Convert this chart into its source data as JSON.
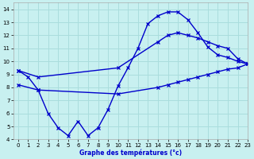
{
  "title": "Graphe des températures (°c)",
  "bg_color": "#c8f0f0",
  "grid_color": "#aadddd",
  "line_color": "#0000cc",
  "xlim": [
    -0.5,
    23
  ],
  "ylim": [
    4,
    14.5
  ],
  "xticks": [
    0,
    1,
    2,
    3,
    4,
    5,
    6,
    7,
    8,
    9,
    10,
    11,
    12,
    13,
    14,
    15,
    16,
    17,
    18,
    19,
    20,
    21,
    22,
    23
  ],
  "yticks": [
    4,
    5,
    6,
    7,
    8,
    9,
    10,
    11,
    12,
    13,
    14
  ],
  "series1_x": [
    0,
    1,
    2,
    3,
    4,
    5,
    6,
    7,
    8,
    9,
    10,
    11,
    12,
    13,
    14,
    15,
    16,
    17,
    18,
    19,
    20,
    21,
    22,
    23
  ],
  "series1_y": [
    9.3,
    8.8,
    7.8,
    6.0,
    4.9,
    4.3,
    5.4,
    4.3,
    4.9,
    6.3,
    8.1,
    9.5,
    11.0,
    12.9,
    13.5,
    13.8,
    13.8,
    13.2,
    12.2,
    11.1,
    10.5,
    10.3,
    10.0,
    9.8
  ],
  "series2_x": [
    0,
    2,
    10,
    14,
    15,
    16,
    17,
    18,
    19,
    20,
    21,
    22,
    23
  ],
  "series2_y": [
    9.3,
    8.8,
    9.5,
    11.5,
    12.0,
    12.2,
    12.0,
    11.8,
    11.5,
    11.2,
    11.0,
    10.2,
    9.8
  ],
  "series3_x": [
    0,
    2,
    10,
    14,
    15,
    16,
    17,
    18,
    19,
    20,
    21,
    22,
    23
  ],
  "series3_y": [
    8.2,
    7.8,
    7.5,
    8.0,
    8.2,
    8.4,
    8.6,
    8.8,
    9.0,
    9.2,
    9.4,
    9.5,
    9.8
  ]
}
